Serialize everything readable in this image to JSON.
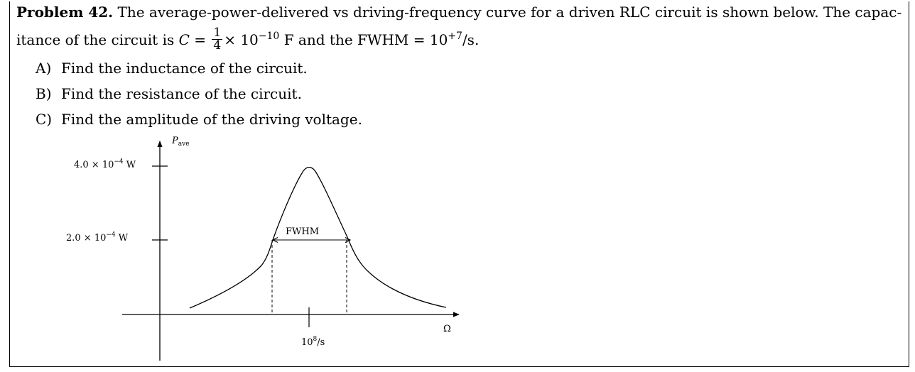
{
  "problem": {
    "heading": "Problem 42.",
    "line1_rest": "The average-power-delivered vs driving-frequency curve for a driven RLC circuit is shown below. The capac-",
    "line2_a": "itance of the circuit is ",
    "line2_C": "C",
    "line2_eq": " = ",
    "frac_num": "1",
    "frac_den": "4",
    "line2_times": "× 10",
    "line2_exp1": "−10",
    "line2_unit": " F and the FWHM = 10",
    "line2_exp2": "+7",
    "line2_end": "/s."
  },
  "questions": [
    {
      "label": "A)",
      "text": "Find the inductance of the circuit."
    },
    {
      "label": "B)",
      "text": "Find the resistance of the circuit."
    },
    {
      "label": "C)",
      "text": "Find the amplitude of the driving voltage."
    }
  ],
  "figure": {
    "y_axis_label": "P",
    "y_axis_sub": "ave",
    "x_axis_label": "Ω",
    "tick_top": "4.0 × 10",
    "tick_top_exp": "−4",
    "tick_top_unit": " W",
    "tick_mid": "2.0 × 10",
    "tick_mid_exp": "−4",
    "tick_mid_unit": " W",
    "center_label": "10",
    "center_exp": "8",
    "center_unit": "/s",
    "fwhm_label": "FWHM"
  }
}
